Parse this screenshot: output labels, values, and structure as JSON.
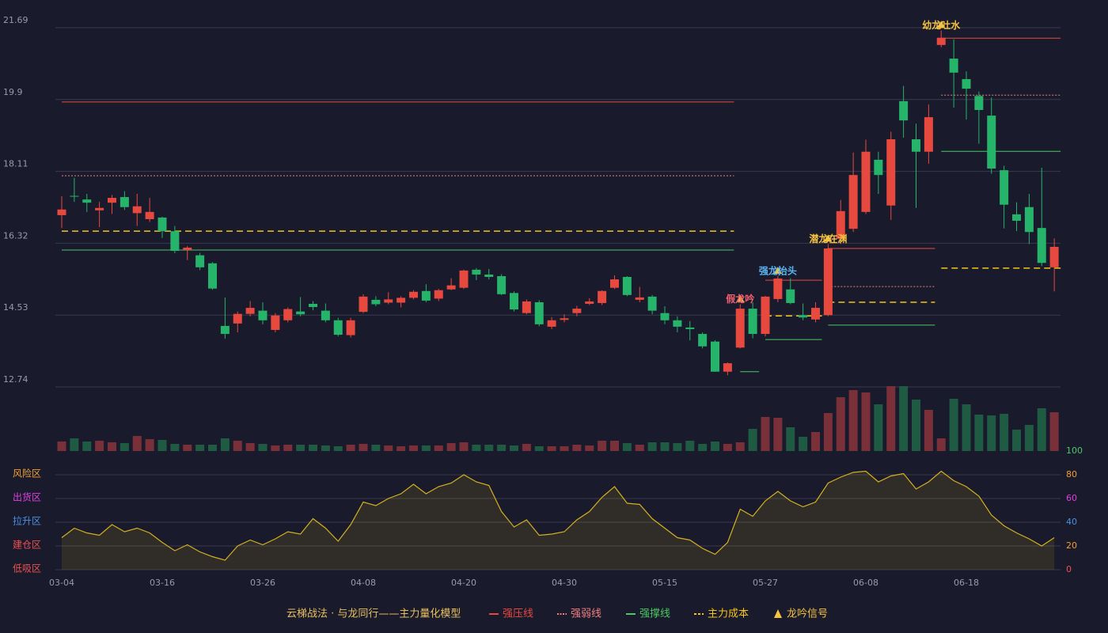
{
  "chart_data": {
    "type": "candlestick",
    "title": "云梯战法 · 与龙同行——主力量化模型",
    "categories": [
      "03-04",
      null,
      null,
      null,
      null,
      null,
      null,
      null,
      "03-16",
      null,
      null,
      null,
      null,
      null,
      null,
      null,
      "03-26",
      null,
      null,
      null,
      null,
      null,
      null,
      null,
      "04-08",
      null,
      null,
      null,
      null,
      null,
      null,
      null,
      "04-20",
      null,
      null,
      null,
      null,
      null,
      null,
      null,
      "04-30",
      null,
      null,
      null,
      null,
      null,
      null,
      null,
      "05-15",
      null,
      null,
      null,
      null,
      null,
      null,
      null,
      "05-27",
      null,
      null,
      null,
      null,
      null,
      null,
      null,
      "06-08",
      null,
      null,
      null,
      null,
      null,
      null,
      null,
      "06-18",
      null,
      null,
      null,
      null,
      null,
      null,
      null
    ],
    "open": [
      17.02,
      17.5,
      17.41,
      17.14,
      17.33,
      17.47,
      17.07,
      16.92,
      16.96,
      16.62,
      16.15,
      16.02,
      15.82,
      14.26,
      14.32,
      14.56,
      14.64,
      14.16,
      14.4,
      14.62,
      14.81,
      14.64,
      14.4,
      14.03,
      14.61,
      14.91,
      14.84,
      14.84,
      14.96,
      15.13,
      14.94,
      15.17,
      15.21,
      15.66,
      15.54,
      15.5,
      15.08,
      14.58,
      14.85,
      14.24,
      14.41,
      14.58,
      14.81,
      14.83,
      15.21,
      15.48,
      14.91,
      14.99,
      14.58,
      14.4,
      14.22,
      14.06,
      13.87,
      13.12,
      13.72,
      14.69,
      14.06,
      14.93,
      15.17,
      14.53,
      14.42,
      14.53,
      16.43,
      16.68,
      17.1,
      18.4,
      17.26,
      19.86,
      18.91,
      18.6,
      21.26,
      20.92,
      20.41,
      19.99,
      19.5,
      18.14,
      17.04,
      17.22,
      16.7,
      15.72
    ],
    "high": [
      17.49,
      17.95,
      17.55,
      17.35,
      17.52,
      17.62,
      17.55,
      17.45,
      16.98,
      16.75,
      16.25,
      16.08,
      15.85,
      14.97,
      14.62,
      14.88,
      14.85,
      14.58,
      14.72,
      14.98,
      14.88,
      14.82,
      14.46,
      14.46,
      15.05,
      15.0,
      15.1,
      15.0,
      15.15,
      15.3,
      15.18,
      15.45,
      15.66,
      15.7,
      15.68,
      15.55,
      15.12,
      14.92,
      14.9,
      14.48,
      14.55,
      14.76,
      14.95,
      15.15,
      15.52,
      15.5,
      15.23,
      15.03,
      14.75,
      14.5,
      14.38,
      14.1,
      13.9,
      13.35,
      14.8,
      14.85,
      15.01,
      15.5,
      15.45,
      14.82,
      14.85,
      16.3,
      17.4,
      18.58,
      18.9,
      18.6,
      19.1,
      20.24,
      19.3,
      19.78,
      21.62,
      21.4,
      20.6,
      20.1,
      19.95,
      18.25,
      17.34,
      17.55,
      18.2,
      16.44
    ],
    "low": [
      16.7,
      17.35,
      17.1,
      16.72,
      17.05,
      17.15,
      16.75,
      16.85,
      16.45,
      16.07,
      15.9,
      15.65,
      15.16,
      13.94,
      14.1,
      14.5,
      14.3,
      14.1,
      14.35,
      14.5,
      14.65,
      14.35,
      14.0,
      13.97,
      14.58,
      14.75,
      14.8,
      14.72,
      14.92,
      14.85,
      14.88,
      15.15,
      15.18,
      15.4,
      15.42,
      15.03,
      14.62,
      14.55,
      14.25,
      14.18,
      14.35,
      14.5,
      14.78,
      14.78,
      15.18,
      15.0,
      14.85,
      14.55,
      14.3,
      14.1,
      13.9,
      13.7,
      13.12,
      13.03,
      13.7,
      13.95,
      14.0,
      14.85,
      14.8,
      14.4,
      14.35,
      14.5,
      16.3,
      16.6,
      17.05,
      17.55,
      16.9,
      18.95,
      17.2,
      18.3,
      21.2,
      19.7,
      19.4,
      18.8,
      18.05,
      16.69,
      16.62,
      16.3,
      15.75,
      15.12
    ],
    "close": [
      17.16,
      17.48,
      17.33,
      17.2,
      17.45,
      17.22,
      17.24,
      17.1,
      16.62,
      16.13,
      16.21,
      15.72,
      15.19,
      14.06,
      14.56,
      14.71,
      14.4,
      14.52,
      14.68,
      14.55,
      14.73,
      14.4,
      14.04,
      14.4,
      14.99,
      14.8,
      14.92,
      14.96,
      15.11,
      14.89,
      15.15,
      15.27,
      15.64,
      15.54,
      15.48,
      15.05,
      14.67,
      14.87,
      14.3,
      14.4,
      14.45,
      14.69,
      14.87,
      15.13,
      15.42,
      15.03,
      14.97,
      14.64,
      14.4,
      14.24,
      14.18,
      13.75,
      13.12,
      13.33,
      14.69,
      14.06,
      14.99,
      15.44,
      14.83,
      14.47,
      14.71,
      16.19,
      17.12,
      18.02,
      18.6,
      18.02,
      18.91,
      19.38,
      18.6,
      19.46,
      21.44,
      20.57,
      20.17,
      19.64,
      18.18,
      17.28,
      16.88,
      16.6,
      15.83,
      16.23
    ],
    "ylim": [
      12.74,
      21.69
    ],
    "yticks": [
      21.69,
      19.9,
      18.11,
      16.32,
      14.53,
      12.74
    ],
    "grid": true,
    "up_color": "#e8493f",
    "down_color": "#26b36a",
    "volume": [
      12,
      16,
      12,
      13,
      11,
      10,
      19,
      15,
      14,
      9,
      8,
      8,
      8,
      16,
      13,
      10,
      9,
      7,
      8,
      8,
      8,
      7,
      6,
      8,
      9,
      8,
      7,
      6,
      7,
      7,
      7,
      10,
      11,
      8,
      8,
      8,
      7,
      9,
      6,
      6,
      6,
      8,
      7,
      13,
      13,
      10,
      8,
      11,
      11,
      10,
      13,
      9,
      12,
      9,
      11,
      28,
      43,
      42,
      30,
      18,
      24,
      48,
      68,
      77,
      74,
      59,
      82,
      82,
      65,
      52,
      16,
      66,
      59,
      46,
      45,
      47,
      27,
      33,
      54,
      49
    ],
    "lines": [
      {
        "name": "强压线",
        "color": "#e8493f",
        "style": "solid",
        "segments": [
          {
            "from": 0,
            "to": 53,
            "value": 19.84
          },
          {
            "from": 56,
            "to": 60,
            "value": 15.4
          },
          {
            "from": 61,
            "to": 69,
            "value": 16.19
          },
          {
            "from": 70,
            "to": 79,
            "value": 21.43
          }
        ]
      },
      {
        "name": "强弱线",
        "color": "#f08080",
        "style": "dotted",
        "segments": [
          {
            "from": 0,
            "to": 53,
            "value": 18.0
          },
          {
            "from": 61,
            "to": 69,
            "value": 15.24
          },
          {
            "from": 70,
            "to": 79,
            "value": 20.01
          }
        ]
      },
      {
        "name": "强撑线",
        "color": "#4cc864",
        "style": "solid",
        "segments": [
          {
            "from": 0,
            "to": 53,
            "value": 16.15
          },
          {
            "from": 54,
            "to": 55,
            "value": 13.12
          },
          {
            "from": 56,
            "to": 60,
            "value": 13.92
          },
          {
            "from": 61,
            "to": 69,
            "value": 14.28
          },
          {
            "from": 70,
            "to": 79,
            "value": 18.61
          }
        ]
      },
      {
        "name": "主力成本",
        "color": "#f5c518",
        "style": "dashed",
        "segments": [
          {
            "from": 0,
            "to": 53,
            "value": 16.62
          },
          {
            "from": 56,
            "to": 60,
            "value": 14.51
          },
          {
            "from": 61,
            "to": 69,
            "value": 14.85
          },
          {
            "from": 70,
            "to": 79,
            "value": 15.7
          }
        ]
      }
    ],
    "signal": {
      "name": "龙吟信号",
      "color": "#f5c242"
    },
    "annotations": [
      {
        "index": 54,
        "label": "假龙吟",
        "color": "#f06070"
      },
      {
        "index": 57,
        "label": "强龙抬头",
        "color": "#5ab4f0"
      },
      {
        "index": 61,
        "label": "潜龙在渊",
        "color": "#f5c242"
      },
      {
        "index": 70,
        "label": "幼龙吐水",
        "color": "#f5c242"
      }
    ],
    "oscillator": {
      "color": "#d4b020",
      "values": [
        27,
        35,
        31,
        29,
        38,
        32,
        35,
        31,
        23,
        16,
        21,
        15,
        11,
        8,
        20,
        25,
        21,
        26,
        32,
        30,
        43,
        35,
        24,
        38,
        57,
        54,
        60,
        64,
        72,
        64,
        70,
        73,
        80,
        74,
        71,
        49,
        36,
        42,
        29,
        30,
        32,
        42,
        49,
        61,
        70,
        56,
        55,
        43,
        35,
        27,
        25,
        18,
        13,
        23,
        51,
        45,
        58,
        66,
        58,
        53,
        57,
        73,
        78,
        82,
        83,
        74,
        79,
        81,
        68,
        74,
        83,
        75,
        70,
        62,
        46,
        37,
        31,
        26,
        20,
        27
      ],
      "ylim": [
        0,
        100
      ],
      "yticks": [
        {
          "value": 100,
          "color": "#4cc864"
        },
        {
          "value": 80,
          "color": "#f0a030"
        },
        {
          "value": 60,
          "color": "#e040e0"
        },
        {
          "value": 40,
          "color": "#4a90e2"
        },
        {
          "value": 20,
          "color": "#f0a030"
        },
        {
          "value": 0,
          "color": "#f05050"
        }
      ],
      "zones": [
        {
          "value": 80,
          "label": "风险区",
          "color": "#f0a030"
        },
        {
          "value": 60,
          "label": "出货区",
          "color": "#e040e0"
        },
        {
          "value": 40,
          "label": "拉升区",
          "color": "#4a90e2"
        },
        {
          "value": 20,
          "label": "建仓区",
          "color": "#f05050"
        },
        {
          "value": 0,
          "label": "低吸区",
          "color": "#f05050"
        }
      ]
    }
  }
}
